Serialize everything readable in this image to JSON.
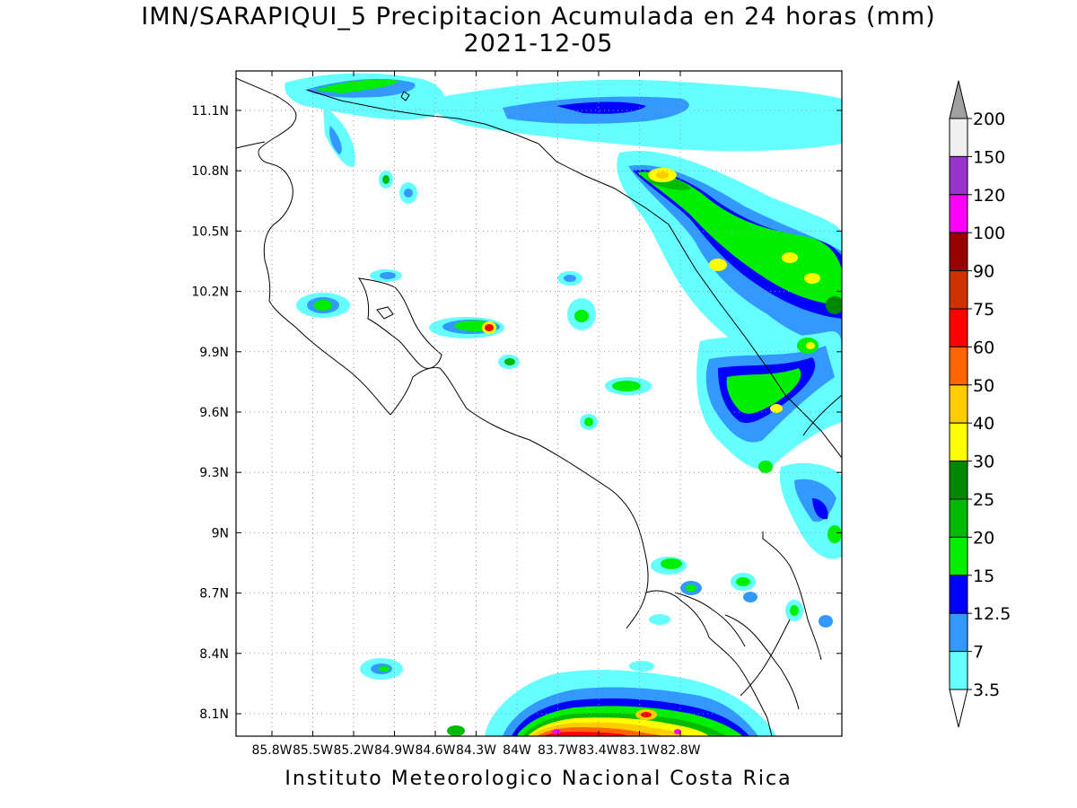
{
  "title": {
    "line1": "IMN/SARAPIQUI_5 Precipitacion Acumulada en 24 horas (mm)",
    "line2": "2021-12-05"
  },
  "footer": "Instituto Meteorologico Nacional Costa Rica",
  "map": {
    "lon_range": [
      -86.0,
      -82.9
    ],
    "lat_range": [
      8.0,
      11.3
    ],
    "lat_ticks": [
      "11.1N",
      "10.8N",
      "10.5N",
      "10.2N",
      "9.9N",
      "9.6N",
      "9.3N",
      "9N",
      "8.7N",
      "8.4N",
      "8.1N"
    ],
    "lon_ticks": [
      "85.8W",
      "85.5W",
      "85.2W",
      "84.9W",
      "84.6W",
      "84.3W",
      "84W",
      "83.7W",
      "83.4W",
      "83.1W",
      "82.8W"
    ],
    "grid": "dotted"
  },
  "colorbar": {
    "labels": [
      "200",
      "150",
      "120",
      "100",
      "90",
      "75",
      "60",
      "50",
      "40",
      "30",
      "25",
      "20",
      "15",
      "12.5",
      "7",
      "3.5"
    ],
    "colors": [
      "#f0f0f0",
      "#9933cc",
      "#ff00ff",
      "#990000",
      "#cc3300",
      "#ff0000",
      "#ff6600",
      "#ffcc00",
      "#ffff00",
      "#008800",
      "#00bb00",
      "#00ee00",
      "#0000ff",
      "#3399ff",
      "#66ffff"
    ],
    "top_arrow_color": "#a0a0a0",
    "bottom_arrow_color": "#ffffff"
  }
}
